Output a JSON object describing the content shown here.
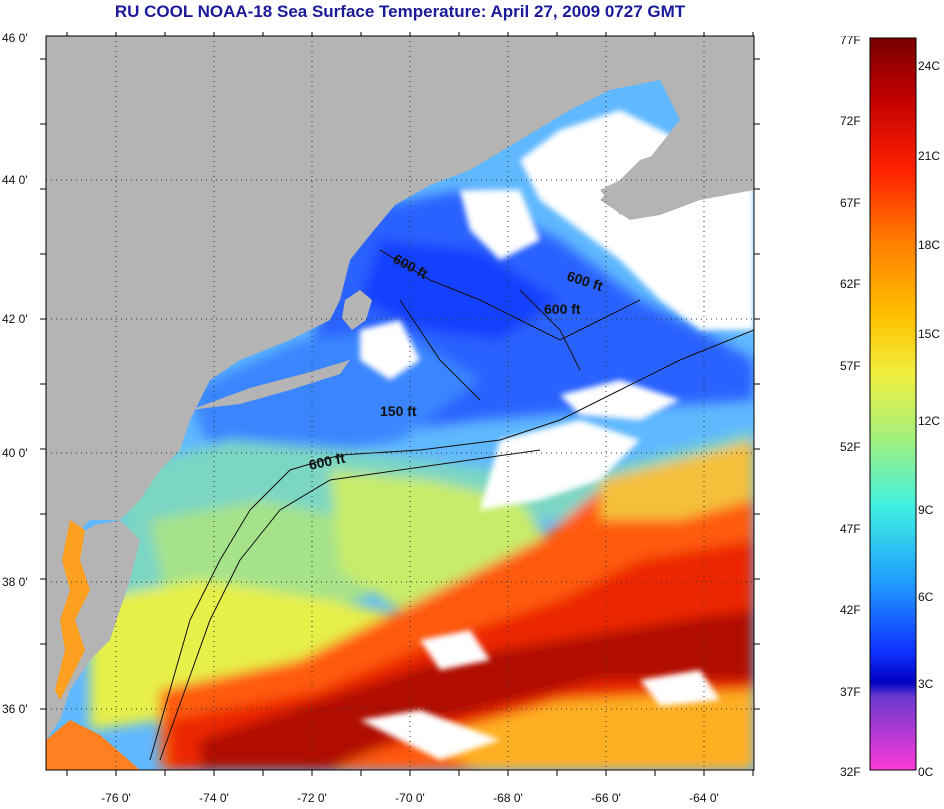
{
  "title": "RU COOL  NOAA-18  Sea Surface Temperature:  April 27, 2009 0727 GMT",
  "map": {
    "lon_ticks": [
      "-76 0'",
      "-74 0'",
      "-72 0'",
      "-70 0'",
      "-68 0'",
      "-66 0'",
      "-64 0'"
    ],
    "lat_ticks": [
      "36 0'",
      "38 0'",
      "40 0'",
      "42 0'",
      "44 0'",
      "46 0'"
    ],
    "contour_labels": [
      "600 ft",
      "600 ft",
      "600 ft",
      "150 ft",
      "600 ft"
    ],
    "colors": {
      "land": "#b4b4b4",
      "cloud": "#ffffff",
      "cold": "#1e50ff",
      "cool": "#3ca0ff",
      "mid": "#7ad7c8",
      "warm": "#e0f050",
      "hot": "#ff3000",
      "hottest": "#aa0000"
    }
  },
  "colorbar": {
    "fahrenheit_labels": [
      "77F",
      "72F",
      "67F",
      "62F",
      "57F",
      "52F",
      "47F",
      "42F",
      "37F",
      "32F"
    ],
    "celsius_labels": [
      "24C",
      "21C",
      "18C",
      "15C",
      "12C",
      "9C",
      "6C",
      "3C",
      "0C"
    ]
  }
}
